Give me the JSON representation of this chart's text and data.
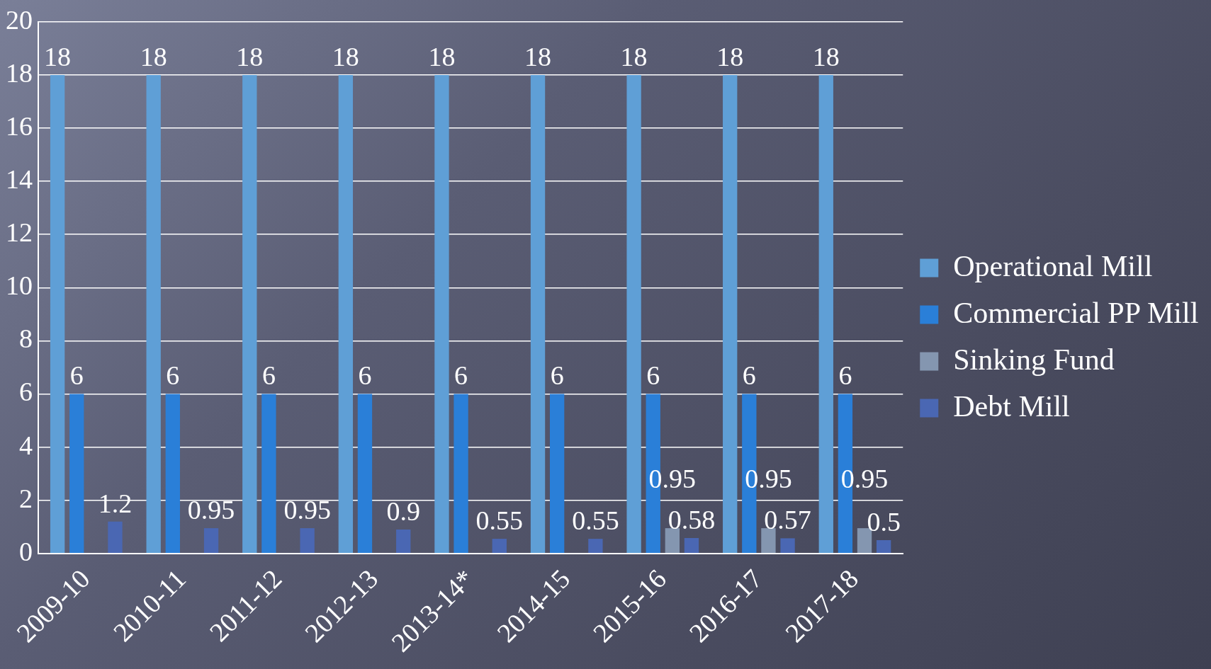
{
  "chart_data": {
    "type": "bar",
    "categories": [
      "2009-10",
      "2010-11",
      "2011-12",
      "2012-13",
      "2013-14*",
      "2014-15",
      "2015-16",
      "2016-17",
      "2017-18"
    ],
    "series": [
      {
        "name": "Operational Mill",
        "color": "#5f9fd6",
        "values": [
          18,
          18,
          18,
          18,
          18,
          18,
          18,
          18,
          18
        ]
      },
      {
        "name": "Commercial PP Mill",
        "color": "#2a7fd8",
        "values": [
          6,
          6,
          6,
          6,
          6,
          6,
          6,
          6,
          6
        ]
      },
      {
        "name": "Sinking Fund",
        "color": "#8496b0",
        "values": [
          null,
          null,
          null,
          null,
          null,
          null,
          0.95,
          0.95,
          0.95
        ]
      },
      {
        "name": "Debt Mill",
        "color": "#4a67b3",
        "values": [
          1.2,
          0.95,
          0.95,
          0.9,
          0.55,
          0.55,
          0.58,
          0.57,
          0.5
        ]
      }
    ],
    "ylim": [
      0,
      20
    ],
    "yticks": [
      0,
      2,
      4,
      6,
      8,
      10,
      12,
      14,
      16,
      18,
      20
    ],
    "grid": "y",
    "legend": "right",
    "data_labels": true
  }
}
